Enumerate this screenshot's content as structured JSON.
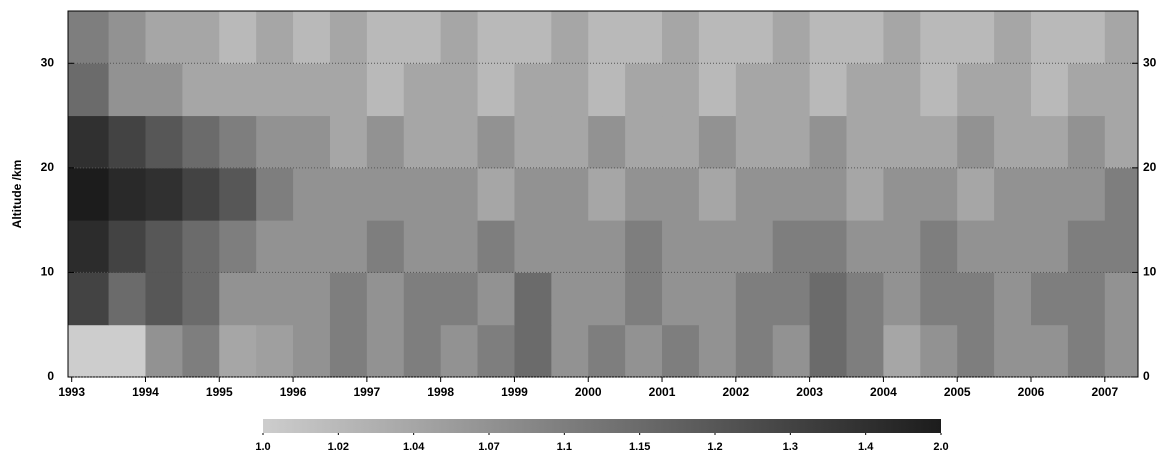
{
  "chart_data": {
    "type": "heatmap",
    "y_label": "Altitude /km",
    "x_bins": [
      1992.95,
      1993.5,
      1994,
      1994.5,
      1995,
      1995.5,
      1996,
      1996.5,
      1997,
      1997.5,
      1998,
      1998.5,
      1999,
      1999.5,
      2000,
      2000.5,
      2001,
      2001.5,
      2002,
      2002.5,
      2003,
      2003.5,
      2004,
      2004.5,
      2005,
      2005.5,
      2006,
      2006.5,
      2007,
      2007.45
    ],
    "y_bins": [
      0,
      5,
      10,
      15,
      20,
      25,
      30,
      35
    ],
    "values": [
      [
        1.0,
        1.0,
        1.07,
        1.1,
        1.04,
        1.05,
        1.07,
        1.1,
        1.07,
        1.1,
        1.07,
        1.1,
        1.15,
        1.07,
        1.1,
        1.07,
        1.1,
        1.07,
        1.1,
        1.07,
        1.15,
        1.1,
        1.04,
        1.07,
        1.1,
        1.07,
        1.07,
        1.1,
        1.07
      ],
      [
        1.3,
        1.15,
        1.2,
        1.15,
        1.07,
        1.07,
        1.07,
        1.1,
        1.07,
        1.1,
        1.1,
        1.07,
        1.15,
        1.07,
        1.07,
        1.1,
        1.07,
        1.07,
        1.1,
        1.1,
        1.15,
        1.1,
        1.07,
        1.1,
        1.1,
        1.07,
        1.1,
        1.1,
        1.07
      ],
      [
        1.5,
        1.3,
        1.2,
        1.15,
        1.1,
        1.07,
        1.07,
        1.07,
        1.1,
        1.07,
        1.07,
        1.1,
        1.07,
        1.07,
        1.07,
        1.1,
        1.07,
        1.07,
        1.07,
        1.1,
        1.1,
        1.07,
        1.07,
        1.1,
        1.07,
        1.07,
        1.07,
        1.1,
        1.1
      ],
      [
        2.0,
        1.6,
        1.4,
        1.3,
        1.2,
        1.1,
        1.07,
        1.07,
        1.07,
        1.07,
        1.07,
        1.04,
        1.07,
        1.07,
        1.04,
        1.07,
        1.07,
        1.04,
        1.07,
        1.07,
        1.07,
        1.04,
        1.07,
        1.07,
        1.04,
        1.07,
        1.07,
        1.07,
        1.1
      ],
      [
        1.4,
        1.3,
        1.2,
        1.15,
        1.1,
        1.07,
        1.07,
        1.04,
        1.07,
        1.04,
        1.04,
        1.07,
        1.04,
        1.04,
        1.07,
        1.04,
        1.04,
        1.07,
        1.04,
        1.04,
        1.07,
        1.04,
        1.04,
        1.04,
        1.07,
        1.04,
        1.04,
        1.07,
        1.04
      ],
      [
        1.15,
        1.07,
        1.07,
        1.04,
        1.04,
        1.04,
        1.04,
        1.04,
        1.02,
        1.04,
        1.04,
        1.02,
        1.04,
        1.04,
        1.02,
        1.04,
        1.04,
        1.02,
        1.04,
        1.04,
        1.02,
        1.04,
        1.04,
        1.02,
        1.04,
        1.04,
        1.02,
        1.04,
        1.04
      ],
      [
        1.1,
        1.07,
        1.04,
        1.04,
        1.02,
        1.04,
        1.02,
        1.04,
        1.02,
        1.02,
        1.04,
        1.02,
        1.02,
        1.04,
        1.02,
        1.02,
        1.04,
        1.02,
        1.02,
        1.04,
        1.02,
        1.02,
        1.04,
        1.02,
        1.02,
        1.04,
        1.02,
        1.02,
        1.04
      ]
    ],
    "xlim": [
      1992.95,
      2007.45
    ],
    "xticks": [
      1993,
      1994,
      1995,
      1996,
      1997,
      1998,
      1999,
      2000,
      2001,
      2002,
      2003,
      2004,
      2005,
      2006,
      2007
    ],
    "ylim": [
      0,
      35
    ],
    "yticks": [
      0,
      10,
      20,
      30
    ],
    "grid": true,
    "color_range": [
      "#cdcdcd",
      "#1c1c1c"
    ],
    "colorbar_ticks": [
      {
        "value": 1,
        "label": "1.0"
      },
      1.02,
      1.04,
      1.07,
      1.1,
      1.15,
      1.2,
      1.3,
      1.4,
      {
        "value": 2,
        "label": "2.0"
      }
    ]
  }
}
